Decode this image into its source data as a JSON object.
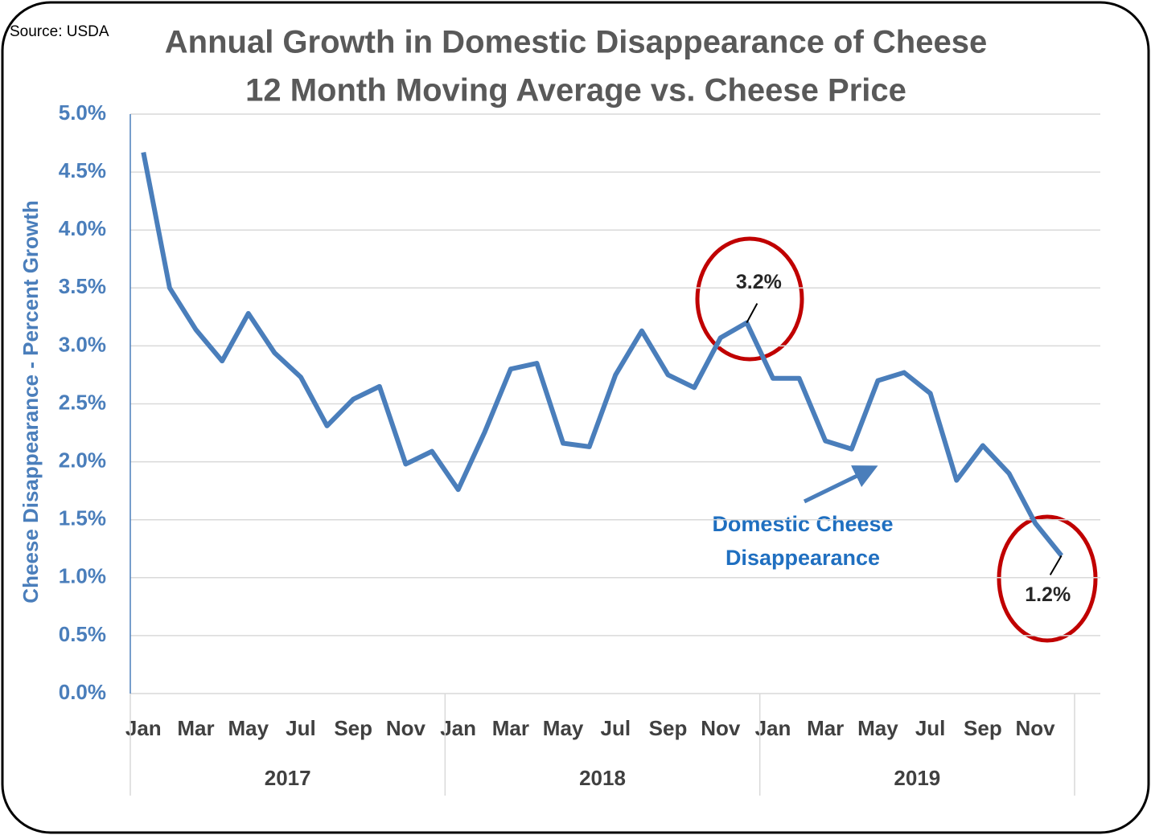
{
  "chart_data": {
    "type": "line",
    "source": "Source: USDA",
    "title": "Annual Growth in Domestic Disappearance of Cheese",
    "subtitle": "12 Month Moving Average vs. Cheese Price",
    "y_label": "Cheese Disappearance - Percent Growth",
    "categories": [
      "Jan",
      null,
      "Mar",
      null,
      "May",
      null,
      "Jul",
      null,
      "Sep",
      null,
      "Nov",
      null,
      "Jan",
      null,
      "Mar",
      null,
      "May",
      null,
      "Jul",
      null,
      "Sep",
      null,
      "Nov",
      null,
      "Jan",
      null,
      "Mar",
      null,
      "May",
      null,
      "Jul",
      null,
      "Sep",
      null,
      "Nov",
      null
    ],
    "category_groups": [
      "2017",
      "2018",
      "2019"
    ],
    "series": [
      {
        "name": "Domestic Cheese Disappearance",
        "color": "#4a7ebb",
        "values": [
          4.67,
          3.5,
          3.14,
          2.87,
          3.28,
          2.94,
          2.73,
          2.31,
          2.54,
          2.65,
          1.98,
          2.09,
          1.76,
          2.25,
          2.8,
          2.85,
          2.16,
          2.13,
          2.75,
          3.13,
          2.75,
          2.64,
          3.07,
          3.2,
          2.72,
          2.72,
          2.18,
          2.11,
          2.7,
          2.77,
          2.59,
          1.84,
          2.14,
          1.9,
          1.47,
          1.19
        ],
        "value_labels": [
          null,
          null,
          null,
          null,
          null,
          null,
          null,
          null,
          null,
          null,
          null,
          null,
          null,
          null,
          null,
          null,
          null,
          null,
          null,
          null,
          null,
          null,
          null,
          "3.2%",
          null,
          null,
          null,
          null,
          null,
          null,
          null,
          null,
          null,
          null,
          null,
          "1.2%"
        ]
      }
    ],
    "annotation": [
      "Domestic Cheese",
      "Disappearance"
    ],
    "ylim": [
      0,
      5
    ],
    "yticks": [
      {
        "value": 0,
        "label": "0.0%"
      },
      {
        "value": 0.5,
        "label": "0.5%"
      },
      {
        "value": 1,
        "label": "1.0%"
      },
      {
        "value": 1.5,
        "label": "1.5%"
      },
      {
        "value": 2,
        "label": "2.0%"
      },
      {
        "value": 2.5,
        "label": "2.5%"
      },
      {
        "value": 3,
        "label": "3.0%"
      },
      {
        "value": 3.5,
        "label": "3.5%"
      },
      {
        "value": 4,
        "label": "4.0%"
      },
      {
        "value": 4.5,
        "label": "4.5%"
      },
      {
        "value": 5,
        "label": "5.0%"
      }
    ],
    "grid": true
  }
}
